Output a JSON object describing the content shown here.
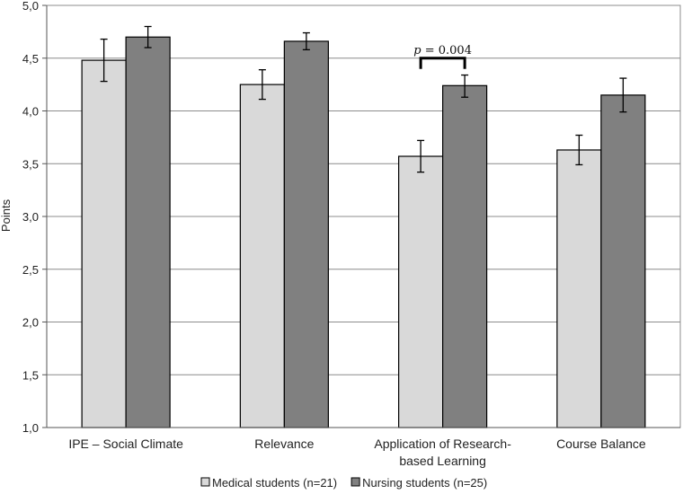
{
  "chart_data": {
    "type": "bar",
    "title": "",
    "xlabel": "",
    "ylabel": "Points",
    "ylim": [
      1.0,
      5.0
    ],
    "yticks": [
      "1,0",
      "1,5",
      "2,0",
      "2,5",
      "3,0",
      "3,5",
      "4,0",
      "4,5",
      "5,0"
    ],
    "categories": [
      [
        "IPE – Social Climate"
      ],
      [
        "Relevance"
      ],
      [
        "Application of Research-",
        "based Learning"
      ],
      [
        "Course Balance"
      ]
    ],
    "series": [
      {
        "name": "Medical students (n=21)",
        "color": "#d9d9d9",
        "values": [
          4.48,
          4.25,
          3.57,
          3.63
        ],
        "err_low": [
          4.28,
          4.11,
          3.42,
          3.49
        ],
        "err_high": [
          4.68,
          4.39,
          3.72,
          3.77
        ]
      },
      {
        "name": "Nursing students (n=25)",
        "color": "#808080",
        "values": [
          4.7,
          4.66,
          4.24,
          4.15
        ],
        "err_low": [
          4.6,
          4.58,
          4.13,
          3.99
        ],
        "err_high": [
          4.8,
          4.74,
          4.34,
          4.31
        ]
      }
    ],
    "annotations": [
      {
        "text": "p = 0.004",
        "category_index": 2,
        "y": 4.5
      }
    ],
    "grid": true,
    "legend_position": "bottom"
  }
}
